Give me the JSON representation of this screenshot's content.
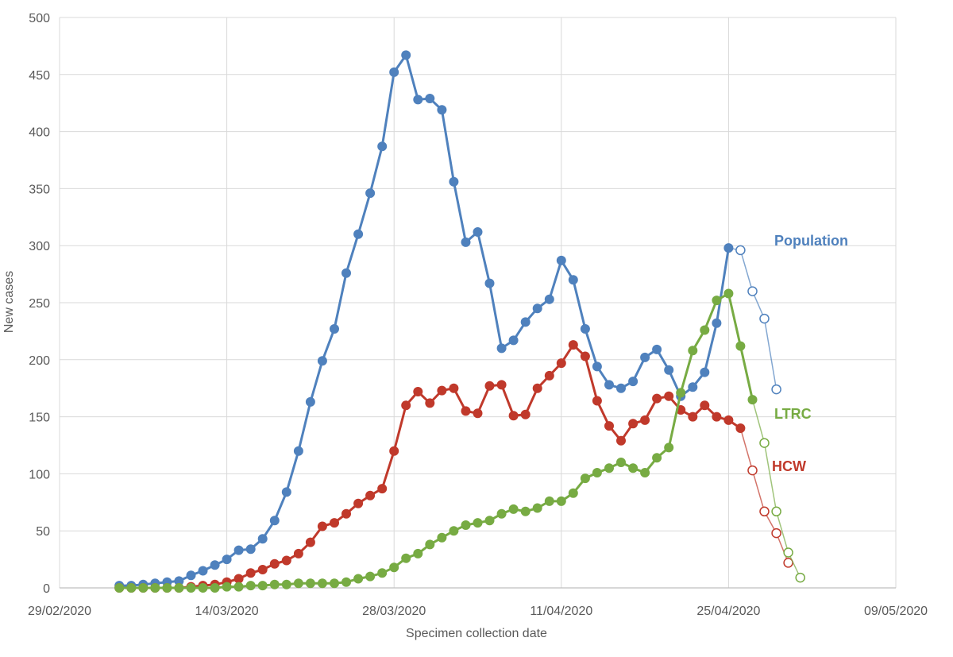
{
  "chart_data": {
    "type": "line",
    "xlabel": "Specimen collection date",
    "ylabel": "New cases",
    "ylim": [
      0,
      500
    ],
    "yticks": [
      0,
      50,
      100,
      150,
      200,
      250,
      300,
      350,
      400,
      450,
      500
    ],
    "xlim": [
      "2020-02-29",
      "2020-05-09"
    ],
    "xticks": [
      "2020-02-29",
      "2020-03-14",
      "2020-03-28",
      "2020-04-11",
      "2020-04-25",
      "2020-05-09"
    ],
    "xtick_labels": [
      "29/02/2020",
      "14/03/2020",
      "28/03/2020",
      "11/04/2020",
      "25/04/2020",
      "09/05/2020"
    ],
    "grid": true,
    "legend": "direct labels at right end of lines",
    "first_date": "2020-03-05",
    "series": [
      {
        "name": "Population",
        "color": "#4f81bd",
        "values": [
          2,
          2,
          3,
          4,
          5,
          6,
          11,
          15,
          20,
          25,
          33,
          34,
          43,
          59,
          84,
          120,
          163,
          199,
          227,
          276,
          310,
          346,
          387,
          452,
          467,
          428,
          429,
          419,
          356,
          303,
          312,
          267,
          210,
          217,
          233,
          245,
          253,
          287,
          270,
          227,
          194,
          178,
          175,
          181,
          202,
          209,
          191,
          168,
          176,
          189,
          232,
          298,
          296,
          260,
          236,
          174
        ],
        "projected_from_index": 51
      },
      {
        "name": "HCW",
        "color": "#c0392b",
        "values": [
          0,
          0,
          0,
          0,
          0,
          0,
          1,
          2,
          3,
          5,
          8,
          13,
          16,
          21,
          24,
          30,
          40,
          54,
          57,
          65,
          74,
          81,
          87,
          120,
          160,
          172,
          162,
          173,
          175,
          155,
          153,
          177,
          178,
          151,
          152,
          175,
          186,
          197,
          213,
          203,
          164,
          142,
          129,
          144,
          147,
          166,
          168,
          156,
          150,
          160,
          150,
          147,
          140,
          103,
          67,
          48,
          22
        ],
        "projected_from_index": 52
      },
      {
        "name": "LTRC",
        "color": "#77ab43",
        "values": [
          0,
          0,
          0,
          0,
          0,
          0,
          0,
          0,
          0,
          1,
          1,
          2,
          2,
          3,
          3,
          4,
          4,
          4,
          4,
          5,
          8,
          10,
          13,
          18,
          26,
          30,
          38,
          44,
          50,
          55,
          57,
          59,
          65,
          69,
          67,
          70,
          76,
          76,
          83,
          96,
          101,
          105,
          110,
          105,
          101,
          114,
          123,
          171,
          208,
          226,
          252,
          258,
          212,
          165,
          127,
          67,
          31,
          9
        ],
        "projected_from_index": 53
      }
    ]
  }
}
